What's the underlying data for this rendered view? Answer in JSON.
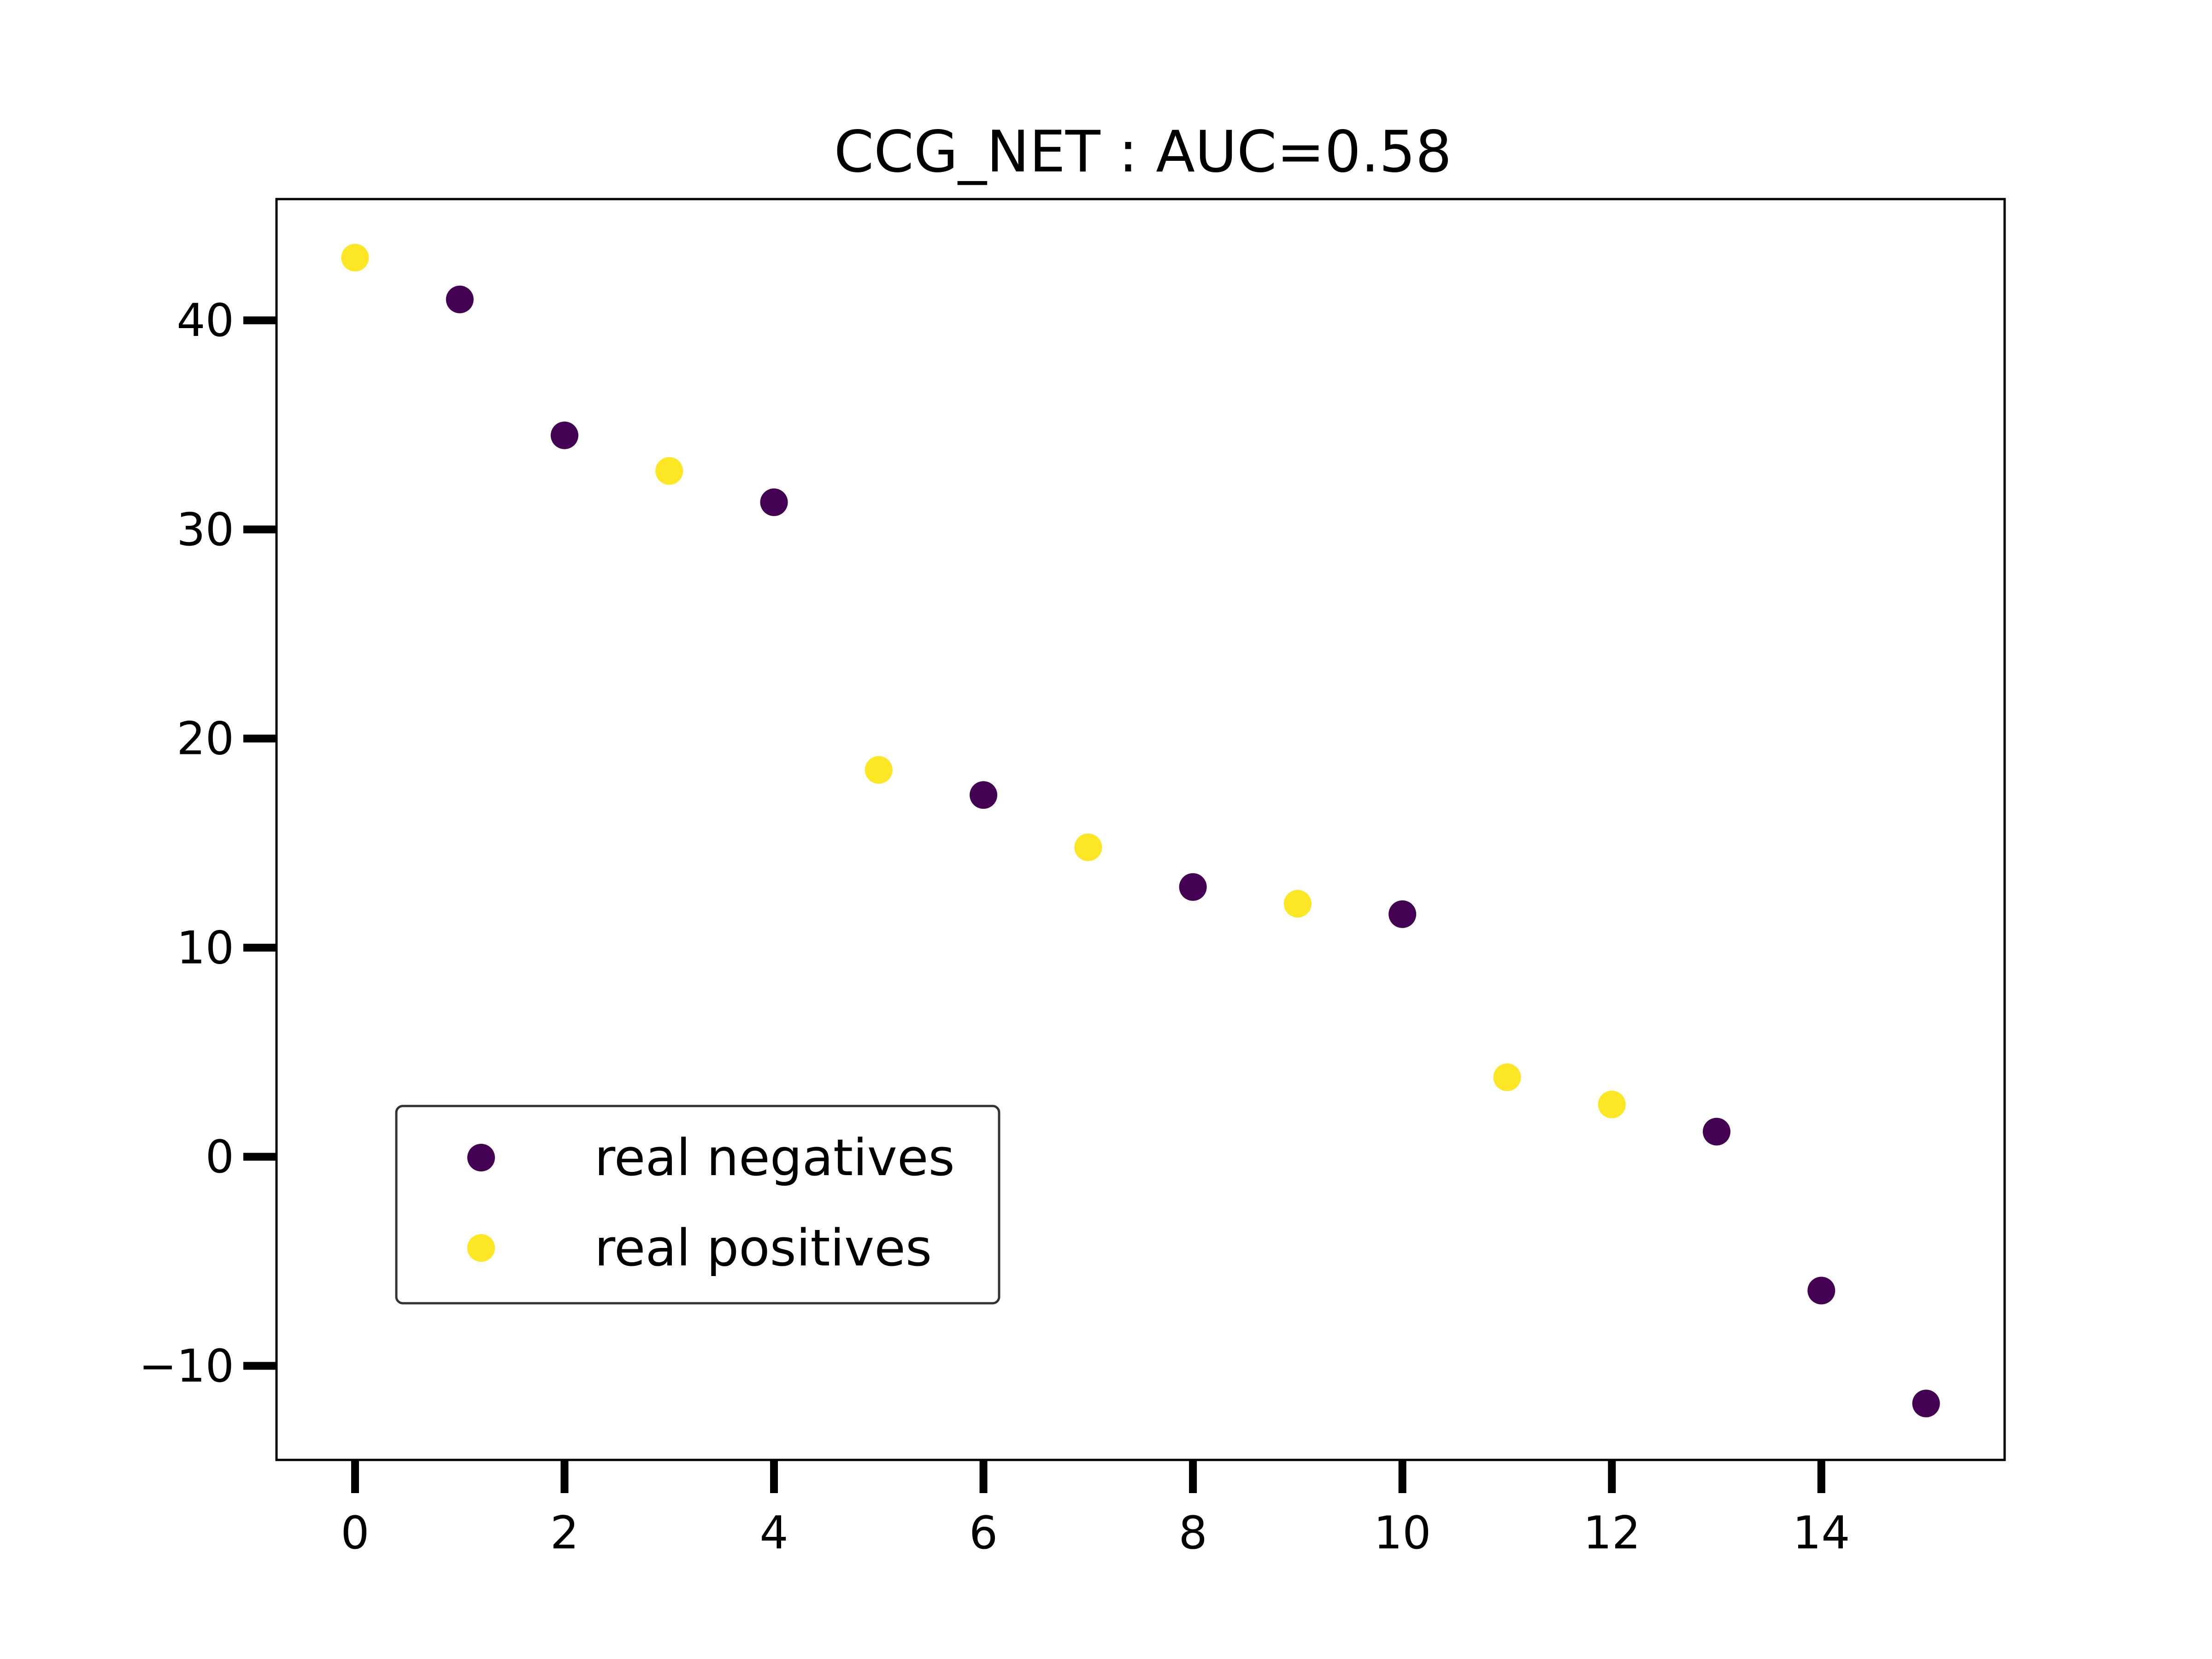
{
  "chart_data": {
    "type": "scatter",
    "title": "CCG_NET : AUC=0.58",
    "xlabel": "",
    "ylabel": "",
    "xlim": [
      -0.75,
      15.75
    ],
    "ylim": [
      -14.5,
      45.8
    ],
    "xticks": [
      0,
      2,
      4,
      6,
      8,
      10,
      12,
      14
    ],
    "xtick_labels": [
      "0",
      "2",
      "4",
      "6",
      "8",
      "10",
      "12",
      "14"
    ],
    "yticks": [
      -10,
      0,
      10,
      20,
      30,
      40
    ],
    "ytick_labels": [
      "−10",
      "0",
      "10",
      "20",
      "30",
      "40"
    ],
    "grid": false,
    "legend_position": "lower-left",
    "series": [
      {
        "name": "real negatives",
        "color": "#440154",
        "x": [
          1,
          2,
          4,
          6,
          8,
          10,
          13,
          14,
          15
        ],
        "y": [
          41.0,
          34.5,
          31.3,
          17.3,
          12.9,
          11.6,
          1.2,
          -6.4,
          -11.8
        ]
      },
      {
        "name": "real positives",
        "color": "#fde725",
        "x": [
          0,
          3,
          5,
          7,
          9,
          11,
          12
        ],
        "y": [
          43.0,
          32.8,
          18.5,
          14.8,
          12.1,
          3.8,
          2.5
        ]
      }
    ]
  }
}
